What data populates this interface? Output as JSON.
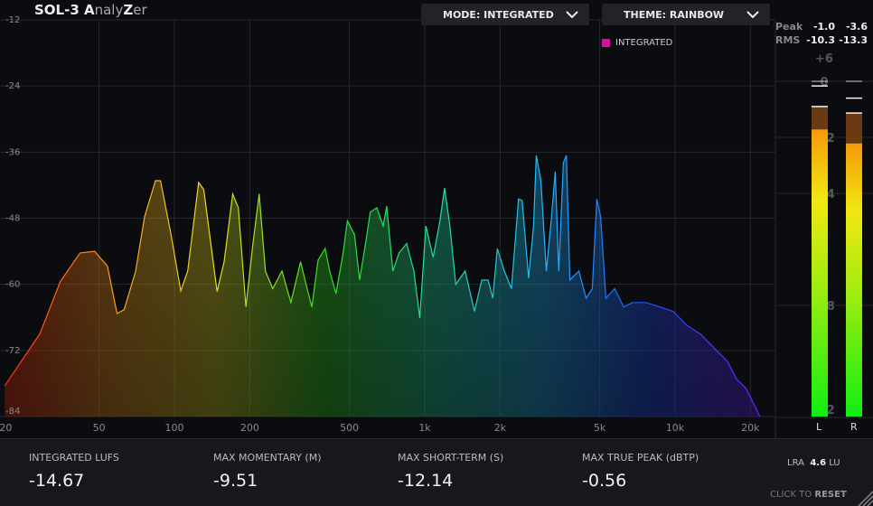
{
  "app": {
    "title_bold_1": "SOL-3 ",
    "title_bold_2": "A",
    "title_lite_1": "naly",
    "title_bold_3": "Z",
    "title_lite_2": "er"
  },
  "controls": {
    "mode": {
      "label": "MODE: INTEGRATED",
      "icon": "chevron-down-icon"
    },
    "theme": {
      "label": "THEME: RAINBOW",
      "icon": "chevron-down-icon"
    }
  },
  "legend": {
    "label": "INTEGRATED",
    "color": "#d6109a"
  },
  "chart_data": {
    "type": "area",
    "x_scale": "log",
    "xlim": [
      20,
      22000
    ],
    "ylim": [
      -84,
      -12
    ],
    "yticks": [
      "-12",
      "-24",
      "-36",
      "-48",
      "-60",
      "-72",
      "-84"
    ],
    "xticks": [
      {
        "v": 20,
        "l": "20"
      },
      {
        "v": 50,
        "l": "50"
      },
      {
        "v": 100,
        "l": "100"
      },
      {
        "v": 200,
        "l": "200"
      },
      {
        "v": 500,
        "l": "500"
      },
      {
        "v": 1000,
        "l": "1k"
      },
      {
        "v": 2000,
        "l": "2k"
      },
      {
        "v": 5000,
        "l": "5k"
      },
      {
        "v": 10000,
        "l": "10k"
      },
      {
        "v": 20000,
        "l": "20k"
      }
    ],
    "grid": true,
    "theme_colors": [
      "#ff2a10",
      "#ff9a1a",
      "#e8e020",
      "#30e020",
      "#20e0a0",
      "#20b8ff",
      "#2050ff",
      "#7020ff"
    ],
    "series": [
      {
        "name": "INTEGRATED",
        "points": [
          [
            21,
            -78.4
          ],
          [
            29,
            -69.0
          ],
          [
            35,
            -59.5
          ],
          [
            42,
            -54.3
          ],
          [
            48,
            -54.0
          ],
          [
            54,
            -56.7
          ],
          [
            59,
            -65.3
          ],
          [
            63,
            -64.6
          ],
          [
            70,
            -57.6
          ],
          [
            76,
            -47.7
          ],
          [
            84,
            -41.2
          ],
          [
            88,
            -41.2
          ],
          [
            97,
            -51.0
          ],
          [
            106,
            -61.2
          ],
          [
            113,
            -57.6
          ],
          [
            125,
            -41.5
          ],
          [
            131,
            -42.8
          ],
          [
            148,
            -61.3
          ],
          [
            158,
            -55.9
          ],
          [
            171,
            -43.6
          ],
          [
            180,
            -46.1
          ],
          [
            193,
            -64.1
          ],
          [
            206,
            -52.6
          ],
          [
            218,
            -43.6
          ],
          [
            231,
            -57.6
          ],
          [
            247,
            -60.8
          ],
          [
            269,
            -57.6
          ],
          [
            292,
            -63.3
          ],
          [
            319,
            -55.9
          ],
          [
            339,
            -60.8
          ],
          [
            354,
            -64.1
          ],
          [
            375,
            -55.6
          ],
          [
            400,
            -53.5
          ],
          [
            417,
            -57.6
          ],
          [
            442,
            -61.7
          ],
          [
            472,
            -54.3
          ],
          [
            491,
            -48.5
          ],
          [
            524,
            -51.0
          ],
          [
            549,
            -59.2
          ],
          [
            580,
            -52.6
          ],
          [
            606,
            -46.9
          ],
          [
            643,
            -46.1
          ],
          [
            682,
            -49.4
          ],
          [
            705,
            -45.8
          ],
          [
            746,
            -57.6
          ],
          [
            790,
            -54.3
          ],
          [
            847,
            -52.6
          ],
          [
            905,
            -57.6
          ],
          [
            955,
            -66.1
          ],
          [
            1010,
            -49.4
          ],
          [
            1080,
            -55.1
          ],
          [
            1150,
            -48.5
          ],
          [
            1200,
            -42.5
          ],
          [
            1260,
            -49.4
          ],
          [
            1330,
            -60.0
          ],
          [
            1450,
            -57.6
          ],
          [
            1580,
            -64.9
          ],
          [
            1690,
            -59.2
          ],
          [
            1790,
            -59.2
          ],
          [
            1870,
            -62.5
          ],
          [
            1950,
            -53.5
          ],
          [
            2080,
            -57.6
          ],
          [
            2220,
            -60.8
          ],
          [
            2370,
            -44.5
          ],
          [
            2450,
            -44.8
          ],
          [
            2600,
            -58.9
          ],
          [
            2720,
            -49.4
          ],
          [
            2790,
            -36.6
          ],
          [
            2910,
            -41.2
          ],
          [
            3060,
            -57.6
          ],
          [
            3210,
            -47.7
          ],
          [
            3320,
            -39.5
          ],
          [
            3430,
            -57.6
          ],
          [
            3580,
            -37.9
          ],
          [
            3680,
            -36.6
          ],
          [
            3800,
            -59.2
          ],
          [
            4130,
            -57.6
          ],
          [
            4410,
            -62.5
          ],
          [
            4670,
            -60.8
          ],
          [
            4870,
            -44.5
          ],
          [
            5040,
            -47.7
          ],
          [
            5290,
            -62.5
          ],
          [
            5740,
            -60.8
          ],
          [
            6230,
            -64.1
          ],
          [
            6760,
            -63.3
          ],
          [
            7660,
            -63.3
          ],
          [
            8680,
            -64.1
          ],
          [
            9830,
            -64.9
          ],
          [
            11100,
            -67.4
          ],
          [
            12600,
            -69.0
          ],
          [
            14300,
            -71.5
          ],
          [
            16200,
            -74.0
          ],
          [
            17600,
            -77.2
          ],
          [
            19200,
            -78.9
          ],
          [
            20800,
            -82.1
          ],
          [
            21800,
            -84.0
          ]
        ]
      }
    ]
  },
  "meter": {
    "scale": [
      "+6",
      "0",
      "-12",
      "-24",
      "-48",
      "-72"
    ],
    "scale_values": [
      6,
      0,
      -12,
      -24,
      -48,
      -72
    ],
    "peak_label": "Peak",
    "rms_label": "RMS",
    "channels": [
      {
        "label": "L",
        "peak": "-1.0",
        "rms": "-10.3",
        "hold": -5.4,
        "top_mark": 0
      },
      {
        "label": "R",
        "peak": "-3.6",
        "rms": "-13.3",
        "hold": -6.8,
        "top_mark": 0
      }
    ]
  },
  "stats": [
    {
      "label": "INTEGRATED LUFS",
      "value": "-14.67"
    },
    {
      "label": "MAX MOMENTARY (M)",
      "value": "-9.51"
    },
    {
      "label": "MAX SHORT-TERM (S)",
      "value": "-12.14"
    },
    {
      "label": "MAX TRUE PEAK (dBTP)",
      "value": "-0.56"
    }
  ],
  "lra": {
    "label": "LRA",
    "value": "4.6",
    "unit": "LU"
  },
  "reset": {
    "prefix": "CLICK TO ",
    "action": "RESET"
  }
}
